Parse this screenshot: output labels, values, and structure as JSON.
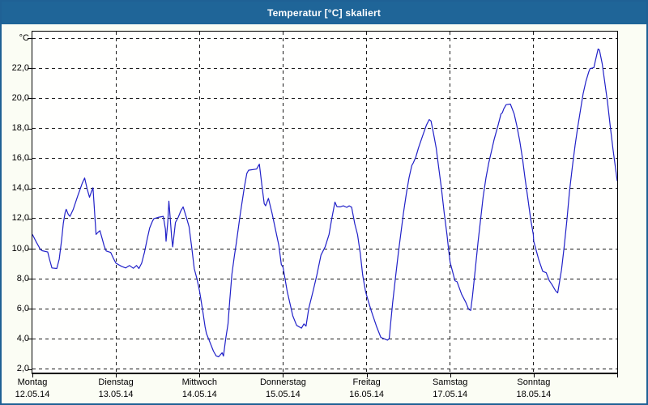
{
  "window": {
    "title": "Temperatur [°C] skaliert",
    "title_bar_color": "#1f6598",
    "border_color": "#1f6195",
    "background_color": "#fbfdf4"
  },
  "chart_data": {
    "type": "line",
    "title": "Temperatur [°C] skaliert",
    "xlabel": "",
    "ylabel": "°C",
    "grid": "dashed",
    "legend": "none",
    "line_color": "#2121c8",
    "ylim": [
      1.76,
      24.44
    ],
    "xlim_hours": [
      0,
      168
    ],
    "y_ticks": [
      {
        "value": 24,
        "label": "°C"
      },
      {
        "value": 22,
        "label": "22,0"
      },
      {
        "value": 20,
        "label": "20,0"
      },
      {
        "value": 18,
        "label": "18,0"
      },
      {
        "value": 16,
        "label": "16,0"
      },
      {
        "value": 14,
        "label": "14,0"
      },
      {
        "value": 12,
        "label": "12,0"
      },
      {
        "value": 10,
        "label": "10,0"
      },
      {
        "value": 8,
        "label": "8,0"
      },
      {
        "value": 6,
        "label": "6,0"
      },
      {
        "value": 4,
        "label": "4,0"
      },
      {
        "value": 2,
        "label": "2,0"
      }
    ],
    "x_days": [
      {
        "weekday": "Montag",
        "date": "12.05.14"
      },
      {
        "weekday": "Dienstag",
        "date": "13.05.14"
      },
      {
        "weekday": "Mittwoch",
        "date": "14.05.14"
      },
      {
        "weekday": "Donnerstag",
        "date": "15.05.14"
      },
      {
        "weekday": "Freitag",
        "date": "16.05.14"
      },
      {
        "weekday": "Samstag",
        "date": "17.05.14"
      },
      {
        "weekday": "Sonntag",
        "date": "18.05.14"
      }
    ],
    "series": [
      {
        "name": "Temperatur",
        "points": [
          [
            0,
            10.95
          ],
          [
            1.2,
            10.4
          ],
          [
            2.3,
            9.95
          ],
          [
            2.8,
            9.87
          ],
          [
            4.4,
            9.78
          ],
          [
            4.9,
            9.3
          ],
          [
            5.6,
            8.72
          ],
          [
            7.0,
            8.68
          ],
          [
            7.7,
            9.3
          ],
          [
            8.4,
            10.6
          ],
          [
            8.9,
            11.7
          ],
          [
            9.4,
            12.4
          ],
          [
            9.7,
            12.62
          ],
          [
            10.3,
            12.28
          ],
          [
            10.8,
            12.15
          ],
          [
            11.7,
            12.6
          ],
          [
            13.0,
            13.5
          ],
          [
            14.3,
            14.35
          ],
          [
            15.0,
            14.7
          ],
          [
            15.7,
            14.0
          ],
          [
            16.4,
            13.42
          ],
          [
            16.9,
            13.75
          ],
          [
            17.4,
            14.05
          ],
          [
            17.7,
            13.0
          ],
          [
            18.0,
            11.9
          ],
          [
            18.3,
            10.95
          ],
          [
            18.9,
            11.1
          ],
          [
            19.4,
            11.2
          ],
          [
            20.0,
            10.7
          ],
          [
            20.6,
            10.2
          ],
          [
            21.2,
            9.85
          ],
          [
            22.5,
            9.75
          ],
          [
            23.3,
            9.35
          ],
          [
            24,
            9.04
          ],
          [
            25.6,
            8.83
          ],
          [
            26.8,
            8.72
          ],
          [
            27.9,
            8.88
          ],
          [
            29.0,
            8.7
          ],
          [
            29.9,
            8.88
          ],
          [
            30.6,
            8.68
          ],
          [
            31.4,
            9.04
          ],
          [
            32.2,
            9.77
          ],
          [
            33.0,
            10.66
          ],
          [
            33.7,
            11.38
          ],
          [
            34.5,
            11.84
          ],
          [
            34.9,
            12.0
          ],
          [
            36.1,
            12.08
          ],
          [
            37.6,
            12.15
          ],
          [
            38.2,
            11.3
          ],
          [
            38.4,
            10.49
          ],
          [
            38.9,
            11.8
          ],
          [
            39.2,
            13.16
          ],
          [
            39.6,
            12.0
          ],
          [
            40.0,
            10.76
          ],
          [
            40.3,
            10.12
          ],
          [
            41.1,
            11.75
          ],
          [
            41.9,
            12.1
          ],
          [
            42.6,
            12.5
          ],
          [
            43.3,
            12.78
          ],
          [
            44.2,
            12.1
          ],
          [
            45.0,
            11.47
          ],
          [
            45.8,
            10.04
          ],
          [
            46.5,
            8.68
          ],
          [
            47.3,
            7.96
          ],
          [
            48,
            7.2
          ],
          [
            48.9,
            5.9
          ],
          [
            49.6,
            4.8
          ],
          [
            50.0,
            4.35
          ],
          [
            50.7,
            3.95
          ],
          [
            52.0,
            3.19
          ],
          [
            52.8,
            2.87
          ],
          [
            53.5,
            2.81
          ],
          [
            54.5,
            3.08
          ],
          [
            54.9,
            2.86
          ],
          [
            55.5,
            3.96
          ],
          [
            56.2,
            5.0
          ],
          [
            56.7,
            6.6
          ],
          [
            57.3,
            8.3
          ],
          [
            58.0,
            9.5
          ],
          [
            58.6,
            10.4
          ],
          [
            59.7,
            12.3
          ],
          [
            60.9,
            14.1
          ],
          [
            61.6,
            15.0
          ],
          [
            62.1,
            15.22
          ],
          [
            64.4,
            15.3
          ],
          [
            65.2,
            15.62
          ],
          [
            65.9,
            14.27
          ],
          [
            66.6,
            13.0
          ],
          [
            67.0,
            12.85
          ],
          [
            67.8,
            13.35
          ],
          [
            68.8,
            12.4
          ],
          [
            69.8,
            11.3
          ],
          [
            70.8,
            10.2
          ],
          [
            71.5,
            8.95
          ],
          [
            72,
            8.77
          ],
          [
            73.2,
            7.15
          ],
          [
            74.8,
            5.53
          ],
          [
            75.9,
            4.9
          ],
          [
            77.3,
            4.72
          ],
          [
            78.0,
            5.0
          ],
          [
            78.6,
            4.85
          ],
          [
            79.4,
            6.03
          ],
          [
            80.6,
            7.15
          ],
          [
            81.7,
            8.23
          ],
          [
            82.9,
            9.58
          ],
          [
            84.1,
            10.12
          ],
          [
            85.2,
            10.94
          ],
          [
            86.0,
            12.0
          ],
          [
            86.9,
            13.1
          ],
          [
            87.5,
            12.8
          ],
          [
            88.4,
            12.78
          ],
          [
            89.3,
            12.85
          ],
          [
            90.3,
            12.75
          ],
          [
            91.0,
            12.85
          ],
          [
            91.7,
            12.76
          ],
          [
            92.6,
            11.65
          ],
          [
            93.4,
            10.94
          ],
          [
            94.2,
            9.68
          ],
          [
            94.9,
            8.23
          ],
          [
            95.7,
            7.15
          ],
          [
            96,
            6.9
          ],
          [
            97.3,
            5.89
          ],
          [
            98.9,
            4.81
          ],
          [
            100.1,
            4.1
          ],
          [
            102.0,
            3.92
          ],
          [
            102.5,
            4.02
          ],
          [
            102.9,
            4.99
          ],
          [
            103.5,
            6.43
          ],
          [
            104.3,
            8.05
          ],
          [
            105.1,
            9.68
          ],
          [
            105.9,
            11.11
          ],
          [
            106.6,
            12.38
          ],
          [
            107.4,
            13.64
          ],
          [
            108.2,
            14.72
          ],
          [
            109.0,
            15.53
          ],
          [
            109.4,
            15.71
          ],
          [
            110.1,
            16.07
          ],
          [
            110.9,
            16.7
          ],
          [
            112.1,
            17.51
          ],
          [
            113.2,
            18.23
          ],
          [
            114.0,
            18.59
          ],
          [
            114.5,
            18.5
          ],
          [
            115.2,
            17.69
          ],
          [
            116.0,
            16.7
          ],
          [
            116.7,
            15.44
          ],
          [
            117.5,
            14.0
          ],
          [
            118.3,
            12.38
          ],
          [
            119.1,
            10.94
          ],
          [
            119.6,
            9.86
          ],
          [
            120,
            9.1
          ],
          [
            121.4,
            7.87
          ],
          [
            122.0,
            7.8
          ],
          [
            123.3,
            6.97
          ],
          [
            124.5,
            6.43
          ],
          [
            125.3,
            5.98
          ],
          [
            125.9,
            5.89
          ],
          [
            126.4,
            6.79
          ],
          [
            127.2,
            8.59
          ],
          [
            128.0,
            10.4
          ],
          [
            128.8,
            12.02
          ],
          [
            129.5,
            13.46
          ],
          [
            130.3,
            14.72
          ],
          [
            131.1,
            15.71
          ],
          [
            131.9,
            16.52
          ],
          [
            132.6,
            17.24
          ],
          [
            133.8,
            18.23
          ],
          [
            134.6,
            18.96
          ],
          [
            135.0,
            19.04
          ],
          [
            135.4,
            19.3
          ],
          [
            136.1,
            19.58
          ],
          [
            137.3,
            19.62
          ],
          [
            138.4,
            18.96
          ],
          [
            139.2,
            18.14
          ],
          [
            140.0,
            17.15
          ],
          [
            140.8,
            15.98
          ],
          [
            141.5,
            14.72
          ],
          [
            142.3,
            13.37
          ],
          [
            143.1,
            12.02
          ],
          [
            143.9,
            10.94
          ],
          [
            144,
            10.5
          ],
          [
            145.4,
            9.31
          ],
          [
            146.6,
            8.5
          ],
          [
            147.6,
            8.4
          ],
          [
            148.5,
            7.87
          ],
          [
            149.3,
            7.6
          ],
          [
            150.3,
            7.2
          ],
          [
            150.9,
            7.06
          ],
          [
            152.0,
            8.59
          ],
          [
            152.8,
            10.22
          ],
          [
            153.6,
            12.02
          ],
          [
            154.3,
            13.82
          ],
          [
            155.1,
            15.44
          ],
          [
            155.9,
            16.88
          ],
          [
            156.7,
            18.14
          ],
          [
            157.5,
            19.31
          ],
          [
            158.2,
            20.3
          ],
          [
            159.0,
            21.12
          ],
          [
            159.8,
            21.75
          ],
          [
            160.2,
            21.98
          ],
          [
            161.3,
            22.05
          ],
          [
            161.7,
            22.47
          ],
          [
            162.5,
            23.28
          ],
          [
            162.9,
            23.2
          ],
          [
            163.7,
            22.29
          ],
          [
            164.4,
            21.12
          ],
          [
            165.2,
            19.76
          ],
          [
            166.0,
            18.14
          ],
          [
            166.8,
            16.61
          ],
          [
            167.5,
            15.35
          ],
          [
            168,
            14.5
          ]
        ]
      }
    ]
  }
}
